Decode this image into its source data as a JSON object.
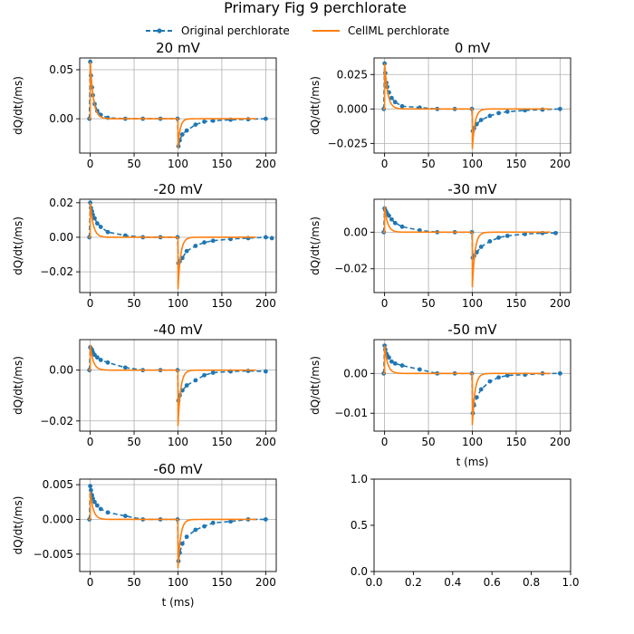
{
  "figure": {
    "title": "Primary Fig 9 perchlorate",
    "legend": {
      "placement": "top-center",
      "entries": [
        {
          "label": "Original perchlorate",
          "style": "dashed-with-markers",
          "color": "#1f77b4"
        },
        {
          "label": "CellML perchlorate",
          "style": "solid",
          "color": "#ff7f0e"
        }
      ]
    },
    "xlabel": "t (ms)",
    "ylabel": "dQ/dt(/ms)"
  },
  "chart_data": [
    {
      "type": "line",
      "title": "20 mV",
      "xlabel": "",
      "ylabel": "dQ/dt(/ms)",
      "xlim": [
        -12,
        212
      ],
      "ylim": [
        -0.035,
        0.062
      ],
      "xticks": [
        "0",
        "50",
        "100",
        "150",
        "200"
      ],
      "yticks": [
        {
          "v": 0.05,
          "label": "0.05"
        },
        {
          "v": 0.0,
          "label": "0.00"
        }
      ],
      "grid": true,
      "model": {
        "on_peak": 0.058,
        "on_tau": 3.5,
        "off_peak": -0.03,
        "off_tau": 2.5
      },
      "series": [
        {
          "name": "Original perchlorate",
          "x": [
            -1,
            0,
            0.8,
            2,
            3,
            5,
            8,
            12,
            20,
            40,
            60,
            80,
            99.5,
            100.5,
            102,
            105,
            110,
            120,
            130,
            140,
            160,
            180,
            200
          ],
          "y": [
            0.0,
            0.058,
            0.044,
            0.032,
            0.024,
            0.015,
            0.008,
            0.004,
            0.001,
            0.0,
            0.0,
            0.0,
            0.0,
            -0.028,
            -0.022,
            -0.016,
            -0.012,
            -0.006,
            -0.003,
            -0.002,
            -0.001,
            -0.0005,
            0.0
          ]
        }
      ]
    },
    {
      "type": "line",
      "title": "0 mV",
      "xlabel": "",
      "ylabel": "dQ/dt(/ms)",
      "xlim": [
        -12,
        212
      ],
      "ylim": [
        -0.032,
        0.037
      ],
      "xticks": [
        "0",
        "50",
        "100",
        "150",
        "200"
      ],
      "yticks": [
        {
          "v": 0.025,
          "label": "0.025"
        },
        {
          "v": 0.0,
          "label": "0.000"
        },
        {
          "v": -0.025,
          "label": "−0.025"
        }
      ],
      "grid": true,
      "model": {
        "on_peak": 0.033,
        "on_tau": 3.5,
        "off_peak": -0.029,
        "off_tau": 3
      },
      "series": [
        {
          "name": "Original perchlorate",
          "x": [
            -1,
            0,
            0.8,
            2,
            3,
            5,
            8,
            12,
            20,
            40,
            60,
            80,
            99.5,
            100.5,
            102,
            105,
            110,
            120,
            130,
            140,
            160,
            180,
            200
          ],
          "y": [
            0.0,
            0.033,
            0.026,
            0.019,
            0.016,
            0.012,
            0.008,
            0.005,
            0.002,
            0.001,
            0.0,
            0.0,
            0.0,
            -0.016,
            -0.014,
            -0.011,
            -0.008,
            -0.005,
            -0.003,
            -0.002,
            -0.001,
            -0.0005,
            0.0
          ]
        }
      ]
    },
    {
      "type": "line",
      "title": "-20 mV",
      "xlabel": "",
      "ylabel": "dQ/dt(/ms)",
      "xlim": [
        -12,
        212
      ],
      "ylim": [
        -0.032,
        0.022
      ],
      "xticks": [
        "0",
        "50",
        "100",
        "150",
        "200"
      ],
      "yticks": [
        {
          "v": 0.02,
          "label": "0.02"
        },
        {
          "v": 0.0,
          "label": "0.00"
        },
        {
          "v": -0.02,
          "label": "−0.02"
        }
      ],
      "grid": true,
      "model": {
        "on_peak": 0.02,
        "on_tau": 3.5,
        "off_peak": -0.03,
        "off_tau": 3
      },
      "series": [
        {
          "name": "Original perchlorate",
          "x": [
            -1,
            0,
            0.8,
            2,
            3,
            5,
            8,
            12,
            20,
            40,
            60,
            80,
            99.5,
            100.5,
            102,
            105,
            110,
            120,
            130,
            140,
            160,
            180,
            200,
            207
          ],
          "y": [
            0.0,
            0.02,
            0.017,
            0.015,
            0.013,
            0.011,
            0.008,
            0.006,
            0.003,
            0.001,
            0.0,
            0.0,
            0.0,
            -0.015,
            -0.014,
            -0.012,
            -0.008,
            -0.005,
            -0.003,
            -0.002,
            -0.001,
            -0.0005,
            0.0,
            -0.0005
          ]
        }
      ]
    },
    {
      "type": "line",
      "title": "-30 mV",
      "xlabel": "",
      "ylabel": "dQ/dt(/ms)",
      "xlim": [
        -12,
        212
      ],
      "ylim": [
        -0.033,
        0.018
      ],
      "xticks": [
        "0",
        "50",
        "100",
        "150",
        "200"
      ],
      "yticks": [
        {
          "v": 0.0,
          "label": "0.00"
        },
        {
          "v": -0.02,
          "label": "−0.02"
        }
      ],
      "grid": true,
      "model": {
        "on_peak": 0.014,
        "on_tau": 3.5,
        "off_peak": -0.03,
        "off_tau": 3
      },
      "series": [
        {
          "name": "Original perchlorate",
          "x": [
            -1,
            0,
            0.8,
            2,
            3,
            5,
            8,
            12,
            20,
            40,
            60,
            80,
            99.5,
            100.5,
            102,
            105,
            110,
            120,
            130,
            140,
            160,
            180,
            195
          ],
          "y": [
            0.0,
            0.013,
            0.012,
            0.011,
            0.01,
            0.009,
            0.007,
            0.005,
            0.003,
            0.001,
            0.0,
            0.0,
            0.0,
            -0.014,
            -0.013,
            -0.011,
            -0.008,
            -0.005,
            -0.003,
            -0.002,
            -0.001,
            -0.0005,
            -0.0005
          ]
        }
      ]
    },
    {
      "type": "line",
      "title": "-40 mV",
      "xlabel": "",
      "ylabel": "dQ/dt(/ms)",
      "xlim": [
        -12,
        212
      ],
      "ylim": [
        -0.024,
        0.012
      ],
      "xticks": [
        "0",
        "50",
        "100",
        "150",
        "200"
      ],
      "yticks": [
        {
          "v": 0.0,
          "label": "0.00"
        },
        {
          "v": -0.02,
          "label": "−0.02"
        }
      ],
      "grid": true,
      "model": {
        "on_peak": 0.01,
        "on_tau": 3.5,
        "off_peak": -0.022,
        "off_tau": 3
      },
      "series": [
        {
          "name": "Original perchlorate",
          "x": [
            -1,
            0,
            0.8,
            2,
            3,
            5,
            8,
            12,
            20,
            40,
            60,
            80,
            99.5,
            100.5,
            102,
            105,
            110,
            120,
            130,
            140,
            160,
            180,
            200
          ],
          "y": [
            0.0,
            0.009,
            0.0085,
            0.008,
            0.007,
            0.006,
            0.005,
            0.004,
            0.003,
            0.001,
            0.0,
            0.0,
            0.0,
            -0.012,
            -0.01,
            -0.008,
            -0.006,
            -0.004,
            -0.002,
            -0.001,
            -0.0005,
            -0.0003,
            -0.0005
          ]
        }
      ]
    },
    {
      "type": "line",
      "title": "-50 mV",
      "xlabel": "t (ms)",
      "ylabel": "dQ/dt(/ms)",
      "xlim": [
        -12,
        212
      ],
      "ylim": [
        -0.0145,
        0.0085
      ],
      "xticks": [
        "0",
        "50",
        "100",
        "150",
        "200"
      ],
      "yticks": [
        {
          "v": 0.0,
          "label": "0.00"
        },
        {
          "v": -0.01,
          "label": "−0.01"
        }
      ],
      "grid": true,
      "model": {
        "on_peak": 0.007,
        "on_tau": 3.5,
        "off_peak": -0.013,
        "off_tau": 3
      },
      "series": [
        {
          "name": "Original perchlorate",
          "x": [
            -1,
            0,
            0.8,
            2,
            3,
            5,
            8,
            12,
            20,
            40,
            60,
            80,
            99.5,
            100.5,
            102,
            105,
            110,
            120,
            130,
            140,
            160,
            180,
            200
          ],
          "y": [
            0.0,
            0.007,
            0.006,
            0.005,
            0.0045,
            0.004,
            0.003,
            0.0025,
            0.002,
            0.001,
            0.0,
            0.0,
            0.0,
            -0.01,
            -0.008,
            -0.006,
            -0.004,
            -0.002,
            -0.001,
            -0.0005,
            -0.0003,
            0.0,
            0.0
          ]
        }
      ]
    },
    {
      "type": "line",
      "title": "-60 mV",
      "xlabel": "t (ms)",
      "ylabel": "dQ/dt(/ms)",
      "xlim": [
        -12,
        212
      ],
      "ylim": [
        -0.0075,
        0.0058
      ],
      "xticks": [
        "0",
        "50",
        "100",
        "150",
        "200"
      ],
      "yticks": [
        {
          "v": 0.005,
          "label": "0.005"
        },
        {
          "v": 0.0,
          "label": "0.000"
        },
        {
          "v": -0.005,
          "label": "−0.005"
        }
      ],
      "grid": true,
      "model": {
        "on_peak": 0.004,
        "on_tau": 3.5,
        "off_peak": -0.007,
        "off_tau": 3
      },
      "series": [
        {
          "name": "Original perchlorate",
          "x": [
            -1,
            0,
            0.8,
            2,
            3,
            5,
            8,
            12,
            20,
            40,
            60,
            80,
            99.5,
            100.5,
            102,
            105,
            110,
            120,
            130,
            140,
            160,
            180,
            200
          ],
          "y": [
            0.0,
            0.0048,
            0.0042,
            0.0035,
            0.003,
            0.0025,
            0.002,
            0.0015,
            0.001,
            0.0005,
            0.0,
            0.0,
            0.0,
            -0.006,
            -0.0048,
            -0.0035,
            -0.0025,
            -0.0015,
            -0.001,
            -0.0005,
            -0.0003,
            0.0,
            0.0
          ]
        }
      ]
    },
    {
      "type": "line",
      "title": "",
      "xlabel": "",
      "ylabel": "",
      "xlim": [
        0,
        1
      ],
      "ylim": [
        0,
        1
      ],
      "xticks": [
        "0.0",
        "0.2",
        "0.4",
        "0.6",
        "0.8",
        "1.0"
      ],
      "yticks": [
        {
          "v": 0.0,
          "label": "0.0"
        },
        {
          "v": 0.5,
          "label": "0.5"
        },
        {
          "v": 1.0,
          "label": "1.0"
        }
      ],
      "grid": false,
      "series": []
    }
  ]
}
